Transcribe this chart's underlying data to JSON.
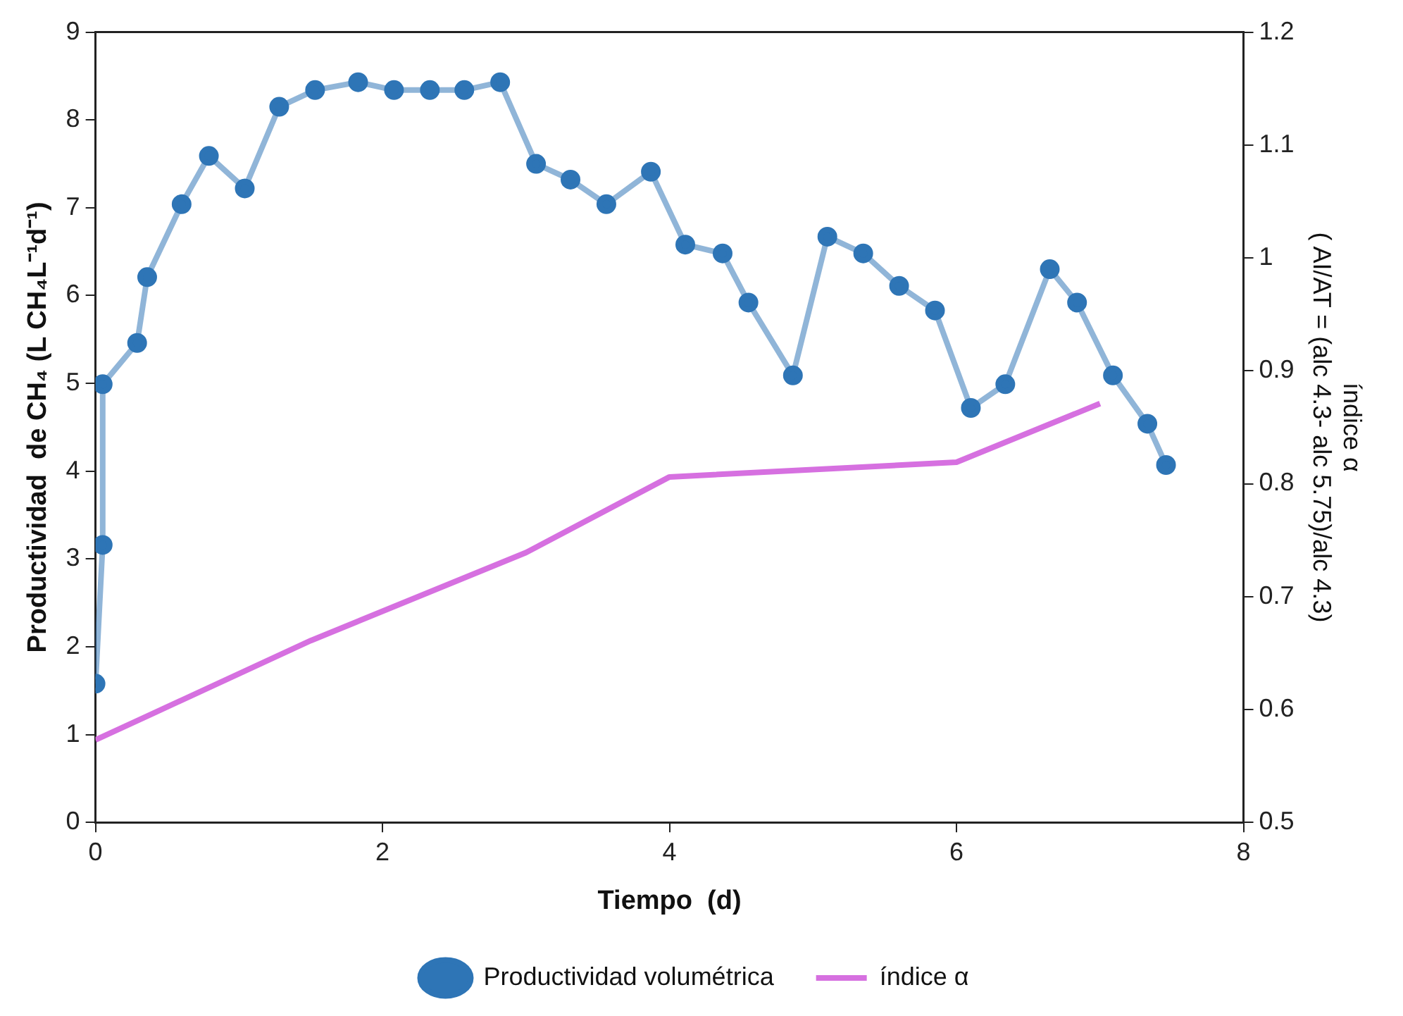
{
  "chart_data": {
    "type": "line",
    "xlabel": "Tiempo  (d)",
    "ylabel": "Productividad  de CH₄ (L CH₄L⁻¹d⁻¹)",
    "y2label": "índice α\n( AI/AT = (alc 4.3- alc 5.75)/alc 4.3)",
    "xlim": [
      0,
      8
    ],
    "xticks": [
      0,
      2,
      4,
      6,
      8
    ],
    "ylim": [
      0,
      9
    ],
    "yticks": [
      0,
      1,
      2,
      3,
      4,
      5,
      6,
      7,
      8,
      9
    ],
    "y2lim": [
      0.5,
      1.2
    ],
    "y2ticks": [
      0.5,
      0.6,
      0.7,
      0.8,
      0.9,
      1,
      1.1,
      1.2
    ],
    "grid": false,
    "legend": "bottom",
    "series": [
      {
        "name": "Productividad volumétrica",
        "color": "#2e75b6",
        "marker": "circle",
        "x": [
          0,
          0.05,
          0.05,
          0.29,
          0.36,
          0.6,
          0.79,
          1.04,
          1.28,
          1.53,
          1.83,
          2.08,
          2.33,
          2.57,
          2.82,
          3.07,
          3.31,
          3.56,
          3.87,
          4.11,
          4.37,
          4.55,
          4.86,
          5.1,
          5.35,
          5.6,
          5.85,
          6.1,
          6.34,
          6.65,
          6.84,
          7.09,
          7.33,
          7.46
        ],
        "values": [
          1.58,
          3.16,
          4.99,
          5.46,
          6.21,
          7.04,
          7.59,
          7.22,
          8.15,
          8.34,
          8.43,
          8.34,
          8.34,
          8.34,
          8.43,
          7.5,
          7.32,
          7.04,
          7.41,
          6.58,
          6.48,
          5.92,
          5.09,
          6.67,
          6.48,
          6.11,
          5.83,
          4.72,
          4.99,
          6.3,
          5.92,
          5.09,
          4.54,
          4.07
        ]
      },
      {
        "name": "índice α",
        "color": "#d670e0",
        "marker": "none",
        "axis": "y2",
        "x": [
          0,
          1.5,
          3,
          4,
          6,
          7
        ],
        "values": [
          0.573,
          0.661,
          0.739,
          0.806,
          0.819,
          0.871
        ]
      }
    ]
  }
}
